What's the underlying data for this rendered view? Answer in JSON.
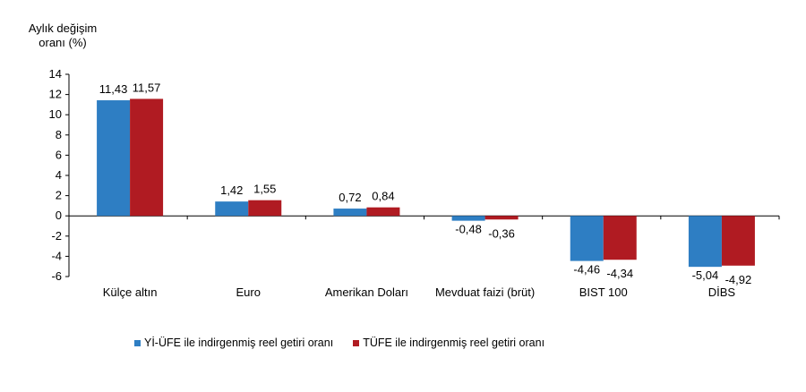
{
  "chart_data": {
    "type": "bar",
    "ylabel_line1": "Aylık değişim",
    "ylabel_line2": "oranı (%)",
    "categories": [
      "Külçe altın",
      "Euro",
      "Amerikan Doları",
      "Mevduat faizi (brüt)",
      "BIST 100",
      "DİBS"
    ],
    "series": [
      {
        "name": "Yİ-ÜFE ile indirgenmiş reel getiri oranı",
        "color": "#2e7ec3",
        "values": [
          11.43,
          1.42,
          0.72,
          -0.48,
          -4.46,
          -5.04
        ],
        "labels": [
          "11,43",
          "1,42",
          "0,72",
          "-0,48",
          "-4,46",
          "-5,04"
        ]
      },
      {
        "name": "TÜFE ile indirgenmiş reel getiri oranı",
        "color": "#b01b22",
        "values": [
          11.57,
          1.55,
          0.84,
          -0.36,
          -4.34,
          -4.92
        ],
        "labels": [
          "11,57",
          "1,55",
          "0,84",
          "-0,36",
          "-4,34",
          "-4,92"
        ]
      }
    ],
    "ylim": [
      -6,
      14
    ],
    "yticks": [
      14,
      12,
      10,
      8,
      6,
      4,
      2,
      0,
      -2,
      -4,
      -6
    ],
    "legend_position": "bottom",
    "grid": false
  }
}
